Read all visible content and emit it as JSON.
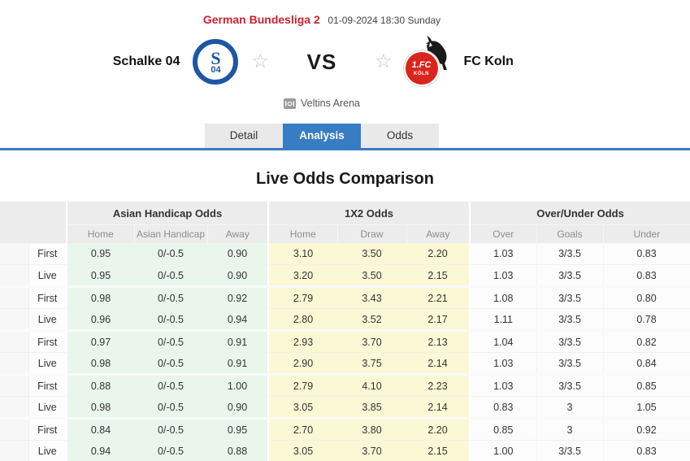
{
  "colors": {
    "accent_blue": "#377dc4",
    "league_red": "#cf2030",
    "green_bg": "#eaf6ec",
    "yellow_bg": "#fbf8d6",
    "schalke_blue": "#1d56a5",
    "koln_red": "#da251d"
  },
  "icons": {
    "favorite_star": "☆"
  },
  "header": {
    "league": "German Bundesliga 2",
    "datetime": "01-09-2024 18:30 Sunday"
  },
  "match": {
    "vs": "VS",
    "venue": "Veltins Arena",
    "home": {
      "name": "Schalke 04",
      "badge_letter": "S",
      "badge_number": "04"
    },
    "away": {
      "name": "FC Koln",
      "badge_top": "1.FC",
      "badge_bottom": "KÖLN"
    }
  },
  "tabs": [
    {
      "label": "Detail",
      "active": false
    },
    {
      "label": "Analysis",
      "active": true
    },
    {
      "label": "Odds",
      "active": false
    }
  ],
  "section_title": "Live Odds Comparison",
  "table": {
    "groups": {
      "ah": "Asian Handicap Odds",
      "x12": "1X2 Odds",
      "ou": "Over/Under Odds"
    },
    "sub": {
      "ah_home": "Home",
      "ah_handicap": "Asian Handicap",
      "ah_away": "Away",
      "x_home": "Home",
      "x_draw": "Draw",
      "x_away": "Away",
      "ou_over": "Over",
      "ou_goals": "Goals",
      "ou_under": "Under"
    },
    "rows": [
      {
        "type": "First",
        "ah": [
          "0.95",
          "0/-0.5",
          "0.90"
        ],
        "x12": [
          "3.10",
          "3.50",
          "2.20"
        ],
        "ou": [
          "1.03",
          "3/3.5",
          "0.83"
        ]
      },
      {
        "type": "Live",
        "ah": [
          "0.95",
          "0/-0.5",
          "0.90"
        ],
        "x12": [
          "3.20",
          "3.50",
          "2.15"
        ],
        "ou": [
          "1.03",
          "3/3.5",
          "0.83"
        ]
      },
      {
        "type": "First",
        "ah": [
          "0.98",
          "0/-0.5",
          "0.92"
        ],
        "x12": [
          "2.79",
          "3.43",
          "2.21"
        ],
        "ou": [
          "1.08",
          "3/3.5",
          "0.80"
        ]
      },
      {
        "type": "Live",
        "ah": [
          "0.96",
          "0/-0.5",
          "0.94"
        ],
        "x12": [
          "2.80",
          "3.52",
          "2.17"
        ],
        "ou": [
          "1.11",
          "3/3.5",
          "0.78"
        ]
      },
      {
        "type": "First",
        "ah": [
          "0.97",
          "0/-0.5",
          "0.91"
        ],
        "x12": [
          "2.93",
          "3.70",
          "2.13"
        ],
        "ou": [
          "1.04",
          "3/3.5",
          "0.82"
        ]
      },
      {
        "type": "Live",
        "ah": [
          "0.98",
          "0/-0.5",
          "0.91"
        ],
        "x12": [
          "2.90",
          "3.75",
          "2.14"
        ],
        "ou": [
          "1.03",
          "3/3.5",
          "0.84"
        ]
      },
      {
        "type": "First",
        "ah": [
          "0.88",
          "0/-0.5",
          "1.00"
        ],
        "x12": [
          "2.79",
          "4.10",
          "2.23"
        ],
        "ou": [
          "1.03",
          "3/3.5",
          "0.85"
        ]
      },
      {
        "type": "Live",
        "ah": [
          "0.98",
          "0/-0.5",
          "0.90"
        ],
        "x12": [
          "3.05",
          "3.85",
          "2.14"
        ],
        "ou": [
          "0.83",
          "3",
          "1.05"
        ]
      },
      {
        "type": "First",
        "ah": [
          "0.84",
          "0/-0.5",
          "0.95"
        ],
        "x12": [
          "2.70",
          "3.80",
          "2.20"
        ],
        "ou": [
          "0.85",
          "3",
          "0.92"
        ]
      },
      {
        "type": "Live",
        "ah": [
          "0.94",
          "0/-0.5",
          "0.88"
        ],
        "x12": [
          "3.05",
          "3.70",
          "2.15"
        ],
        "ou": [
          "1.00",
          "3/3.5",
          "0.83"
        ]
      }
    ]
  }
}
